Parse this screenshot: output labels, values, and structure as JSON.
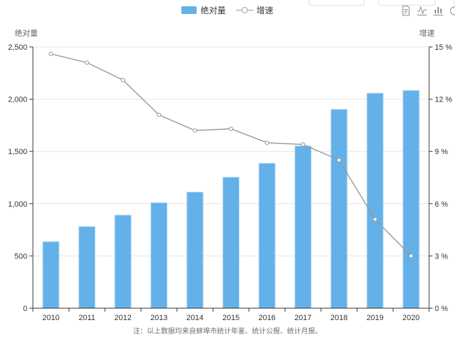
{
  "legend": {
    "items": [
      {
        "label": "绝对量",
        "type": "bar"
      },
      {
        "label": "增速",
        "type": "line"
      }
    ]
  },
  "toolbar": {
    "icons": [
      {
        "name": "data-view"
      },
      {
        "name": "switch-to-line"
      },
      {
        "name": "switch-to-bar"
      },
      {
        "name": "restore"
      }
    ]
  },
  "axis_titles": {
    "left": "绝对量",
    "right": "增速"
  },
  "note": "注：以上数据均来自蚌埠市统计年鉴、统计公报、统计月报。",
  "colors": {
    "bar": "#63b1e8",
    "bar_border": "#a7d2f3",
    "line": "#999999",
    "marker_fill": "#ffffff",
    "grid": "#e6e6e6",
    "axis": "#333333",
    "tick_text": "#333333",
    "icon": "#8f8f8f"
  },
  "chart_data": {
    "type": "combo",
    "categories": [
      "2010",
      "2011",
      "2012",
      "2013",
      "2014",
      "2015",
      "2016",
      "2017",
      "2018",
      "2019",
      "2020"
    ],
    "series": [
      {
        "name": "绝对量",
        "chart_type": "bar",
        "y_axis": "left",
        "values": [
          636,
          780,
          890,
          1008,
          1110,
          1253,
          1386,
          1551,
          1902,
          2057,
          2083
        ]
      },
      {
        "name": "增速",
        "chart_type": "line",
        "y_axis": "right",
        "values": [
          14.6,
          14.1,
          13.1,
          11.1,
          10.2,
          10.3,
          9.5,
          9.4,
          8.5,
          5.1,
          3.0
        ]
      }
    ],
    "left_axis": {
      "title": "绝对量",
      "min": 0,
      "max": 2500,
      "step": 500,
      "tick_labels": [
        "0",
        "500",
        "1,000",
        "1,500",
        "2,000",
        "2,500"
      ]
    },
    "right_axis": {
      "title": "增速",
      "min": 0,
      "max": 15,
      "step": 3,
      "tick_labels": [
        "0 %",
        "3 %",
        "6 %",
        "9 %",
        "12 %",
        "15 %"
      ]
    },
    "grid": true,
    "legend_position": "top-center"
  }
}
